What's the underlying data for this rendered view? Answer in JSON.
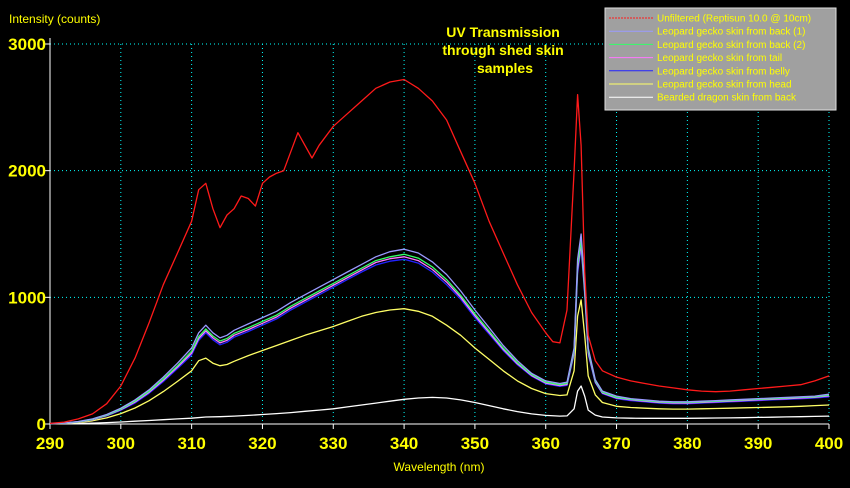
{
  "chart_data": {
    "type": "line",
    "title": "UV Transmission through shed skin samples",
    "title_lines": [
      "UV Transmission",
      "through shed skin",
      "samples"
    ],
    "xlabel": "Wavelength (nm)",
    "ylabel": "Intensity (counts)",
    "xlim": [
      290,
      400
    ],
    "ylim": [
      0,
      3000
    ],
    "x_ticks": [
      290,
      300,
      310,
      320,
      330,
      340,
      350,
      360,
      370,
      380,
      390,
      400
    ],
    "y_ticks": [
      0,
      1000,
      2000,
      3000
    ],
    "grid": true,
    "legend_position": "top-right",
    "colors": {
      "background": "#000000",
      "axes": "#ffffff",
      "grid": "#00ffff",
      "tick_labels": "#ffff00",
      "title": "#ffff00",
      "legend_bg": "#a0a0a0",
      "legend_text": "#ffff00"
    },
    "series": [
      {
        "name": "Unfiltered (Reptisun 10.0 @ 10cm)",
        "color": "#ff1a1a",
        "x": [
          290,
          292,
          294,
          296,
          298,
          300,
          302,
          304,
          306,
          308,
          310,
          311,
          312,
          313,
          314,
          315,
          316,
          317,
          318,
          319,
          320,
          321,
          322,
          323,
          324,
          325,
          326,
          327,
          328,
          330,
          332,
          334,
          336,
          338,
          340,
          342,
          344,
          346,
          348,
          350,
          352,
          354,
          356,
          358,
          360,
          361,
          362,
          363,
          364,
          364.5,
          365,
          365.5,
          366,
          367,
          368,
          370,
          372,
          374,
          376,
          378,
          380,
          382,
          384,
          386,
          388,
          390,
          392,
          394,
          396,
          398,
          400
        ],
        "y": [
          5,
          15,
          40,
          80,
          160,
          300,
          520,
          800,
          1100,
          1350,
          1600,
          1850,
          1900,
          1700,
          1550,
          1650,
          1700,
          1800,
          1780,
          1720,
          1900,
          1950,
          1980,
          2000,
          2150,
          2300,
          2200,
          2100,
          2200,
          2350,
          2450,
          2550,
          2650,
          2700,
          2720,
          2650,
          2550,
          2400,
          2150,
          1900,
          1600,
          1350,
          1100,
          880,
          720,
          650,
          640,
          900,
          2000,
          2600,
          2200,
          1200,
          700,
          500,
          420,
          370,
          340,
          320,
          300,
          285,
          270,
          260,
          255,
          260,
          270,
          280,
          290,
          300,
          310,
          340,
          380
        ]
      },
      {
        "name": "Leopard gecko skin from back (1)",
        "color": "#9a9aff",
        "x": [
          290,
          292,
          294,
          296,
          298,
          300,
          302,
          304,
          306,
          308,
          310,
          311,
          312,
          313,
          314,
          315,
          316,
          318,
          320,
          322,
          324,
          326,
          328,
          330,
          332,
          334,
          336,
          338,
          340,
          342,
          344,
          346,
          348,
          350,
          352,
          354,
          356,
          358,
          360,
          362,
          363,
          364,
          364.5,
          365,
          365.5,
          366,
          367,
          368,
          370,
          372,
          374,
          376,
          378,
          380,
          382,
          384,
          386,
          388,
          390,
          392,
          394,
          396,
          398,
          400
        ],
        "y": [
          3,
          8,
          20,
          40,
          75,
          125,
          190,
          270,
          370,
          480,
          600,
          720,
          780,
          720,
          680,
          700,
          740,
          790,
          840,
          890,
          960,
          1020,
          1080,
          1140,
          1200,
          1260,
          1320,
          1360,
          1380,
          1350,
          1280,
          1180,
          1050,
          900,
          760,
          620,
          500,
          400,
          340,
          320,
          330,
          600,
          1300,
          1500,
          1100,
          600,
          350,
          260,
          220,
          200,
          190,
          180,
          175,
          175,
          180,
          185,
          190,
          195,
          200,
          205,
          210,
          215,
          220,
          235
        ]
      },
      {
        "name": "Leopard gecko skin from back (2)",
        "color": "#33ff66",
        "x": [
          290,
          292,
          294,
          296,
          298,
          300,
          302,
          304,
          306,
          308,
          310,
          311,
          312,
          313,
          314,
          315,
          316,
          318,
          320,
          322,
          324,
          326,
          328,
          330,
          332,
          334,
          336,
          338,
          340,
          342,
          344,
          346,
          348,
          350,
          352,
          354,
          356,
          358,
          360,
          362,
          363,
          364,
          364.5,
          365,
          365.5,
          366,
          367,
          368,
          370,
          372,
          374,
          376,
          378,
          380,
          382,
          384,
          386,
          388,
          390,
          392,
          394,
          396,
          398,
          400
        ],
        "y": [
          3,
          7,
          18,
          37,
          70,
          118,
          180,
          258,
          355,
          460,
          575,
          690,
          750,
          695,
          655,
          675,
          715,
          760,
          810,
          860,
          930,
          990,
          1050,
          1110,
          1170,
          1230,
          1290,
          1320,
          1340,
          1310,
          1240,
          1140,
          1015,
          870,
          735,
          600,
          485,
          390,
          330,
          310,
          320,
          580,
          1250,
          1450,
          1060,
          580,
          340,
          250,
          210,
          195,
          185,
          175,
          170,
          170,
          175,
          180,
          185,
          190,
          195,
          200,
          205,
          210,
          215,
          228
        ]
      },
      {
        "name": "Leopard gecko skin from tail",
        "color": "#ff77ff",
        "x": [
          290,
          292,
          294,
          296,
          298,
          300,
          302,
          304,
          306,
          308,
          310,
          311,
          312,
          313,
          314,
          315,
          316,
          318,
          320,
          322,
          324,
          326,
          328,
          330,
          332,
          334,
          336,
          338,
          340,
          342,
          344,
          346,
          348,
          350,
          352,
          354,
          356,
          358,
          360,
          362,
          363,
          364,
          364.5,
          365,
          365.5,
          366,
          367,
          368,
          370,
          372,
          374,
          376,
          378,
          380,
          382,
          384,
          386,
          388,
          390,
          392,
          394,
          396,
          398,
          400
        ],
        "y": [
          3,
          7,
          17,
          35,
          67,
          113,
          173,
          250,
          345,
          450,
          560,
          675,
          735,
          680,
          640,
          660,
          700,
          745,
          795,
          845,
          915,
          975,
          1035,
          1095,
          1155,
          1215,
          1275,
          1305,
          1320,
          1290,
          1220,
          1120,
          1000,
          855,
          722,
          590,
          475,
          383,
          323,
          303,
          312,
          565,
          1220,
          1420,
          1040,
          565,
          332,
          245,
          205,
          190,
          180,
          170,
          165,
          165,
          170,
          175,
          180,
          185,
          190,
          195,
          200,
          205,
          210,
          222
        ]
      },
      {
        "name": "Leopard gecko skin from belly",
        "color": "#2222ff",
        "x": [
          290,
          292,
          294,
          296,
          298,
          300,
          302,
          304,
          306,
          308,
          310,
          311,
          312,
          313,
          314,
          315,
          316,
          318,
          320,
          322,
          324,
          326,
          328,
          330,
          332,
          334,
          336,
          338,
          340,
          342,
          344,
          346,
          348,
          350,
          352,
          354,
          356,
          358,
          360,
          362,
          363,
          364,
          364.5,
          365,
          365.5,
          366,
          367,
          368,
          370,
          372,
          374,
          376,
          378,
          380,
          382,
          384,
          386,
          388,
          390,
          392,
          394,
          396,
          398,
          400
        ],
        "y": [
          3,
          6,
          16,
          33,
          64,
          108,
          166,
          242,
          335,
          438,
          545,
          660,
          720,
          665,
          625,
          645,
          685,
          730,
          780,
          830,
          900,
          960,
          1020,
          1080,
          1140,
          1200,
          1255,
          1285,
          1300,
          1270,
          1200,
          1100,
          985,
          840,
          710,
          580,
          467,
          377,
          317,
          297,
          305,
          550,
          1190,
          1390,
          1020,
          550,
          325,
          240,
          200,
          185,
          175,
          165,
          160,
          160,
          165,
          170,
          175,
          180,
          185,
          190,
          195,
          200,
          205,
          215
        ]
      },
      {
        "name": "Leopard gecko skin from head",
        "color": "#ffff66",
        "x": [
          290,
          292,
          294,
          296,
          298,
          300,
          302,
          304,
          306,
          308,
          310,
          311,
          312,
          313,
          314,
          315,
          316,
          318,
          320,
          322,
          324,
          326,
          328,
          330,
          332,
          334,
          336,
          338,
          340,
          342,
          344,
          346,
          348,
          350,
          352,
          354,
          356,
          358,
          360,
          362,
          363,
          364,
          364.5,
          365,
          365.5,
          366,
          367,
          368,
          370,
          372,
          374,
          376,
          378,
          380,
          382,
          384,
          386,
          388,
          390,
          392,
          394,
          396,
          398,
          400
        ],
        "y": [
          2,
          5,
          12,
          25,
          48,
          82,
          126,
          184,
          256,
          336,
          420,
          500,
          520,
          480,
          460,
          470,
          495,
          540,
          580,
          620,
          660,
          700,
          735,
          770,
          810,
          850,
          880,
          900,
          910,
          890,
          850,
          780,
          700,
          600,
          510,
          420,
          340,
          280,
          240,
          225,
          230,
          420,
          850,
          980,
          700,
          380,
          230,
          170,
          140,
          130,
          125,
          120,
          118,
          118,
          120,
          122,
          125,
          128,
          130,
          133,
          136,
          140,
          145,
          150
        ]
      },
      {
        "name": "Bearded dragon skin from back",
        "color": "#ffffff",
        "x": [
          290,
          292,
          294,
          296,
          298,
          300,
          302,
          304,
          306,
          308,
          310,
          312,
          314,
          316,
          318,
          320,
          322,
          324,
          326,
          328,
          330,
          332,
          334,
          336,
          338,
          340,
          342,
          344,
          346,
          348,
          350,
          352,
          354,
          356,
          358,
          360,
          362,
          363,
          364,
          364.5,
          365,
          365.5,
          366,
          367,
          368,
          370,
          372,
          374,
          376,
          378,
          380,
          382,
          384,
          386,
          388,
          390,
          392,
          394,
          396,
          398,
          400
        ],
        "y": [
          1,
          2,
          4,
          7,
          11,
          16,
          22,
          28,
          34,
          40,
          46,
          55,
          58,
          62,
          68,
          75,
          82,
          90,
          100,
          110,
          120,
          135,
          150,
          165,
          180,
          195,
          205,
          210,
          205,
          190,
          170,
          145,
          120,
          98,
          80,
          68,
          62,
          64,
          120,
          260,
          300,
          220,
          110,
          70,
          55,
          48,
          46,
          45,
          45,
          45,
          45,
          46,
          47,
          48,
          50,
          52,
          54,
          56,
          58,
          60,
          62
        ]
      }
    ]
  }
}
